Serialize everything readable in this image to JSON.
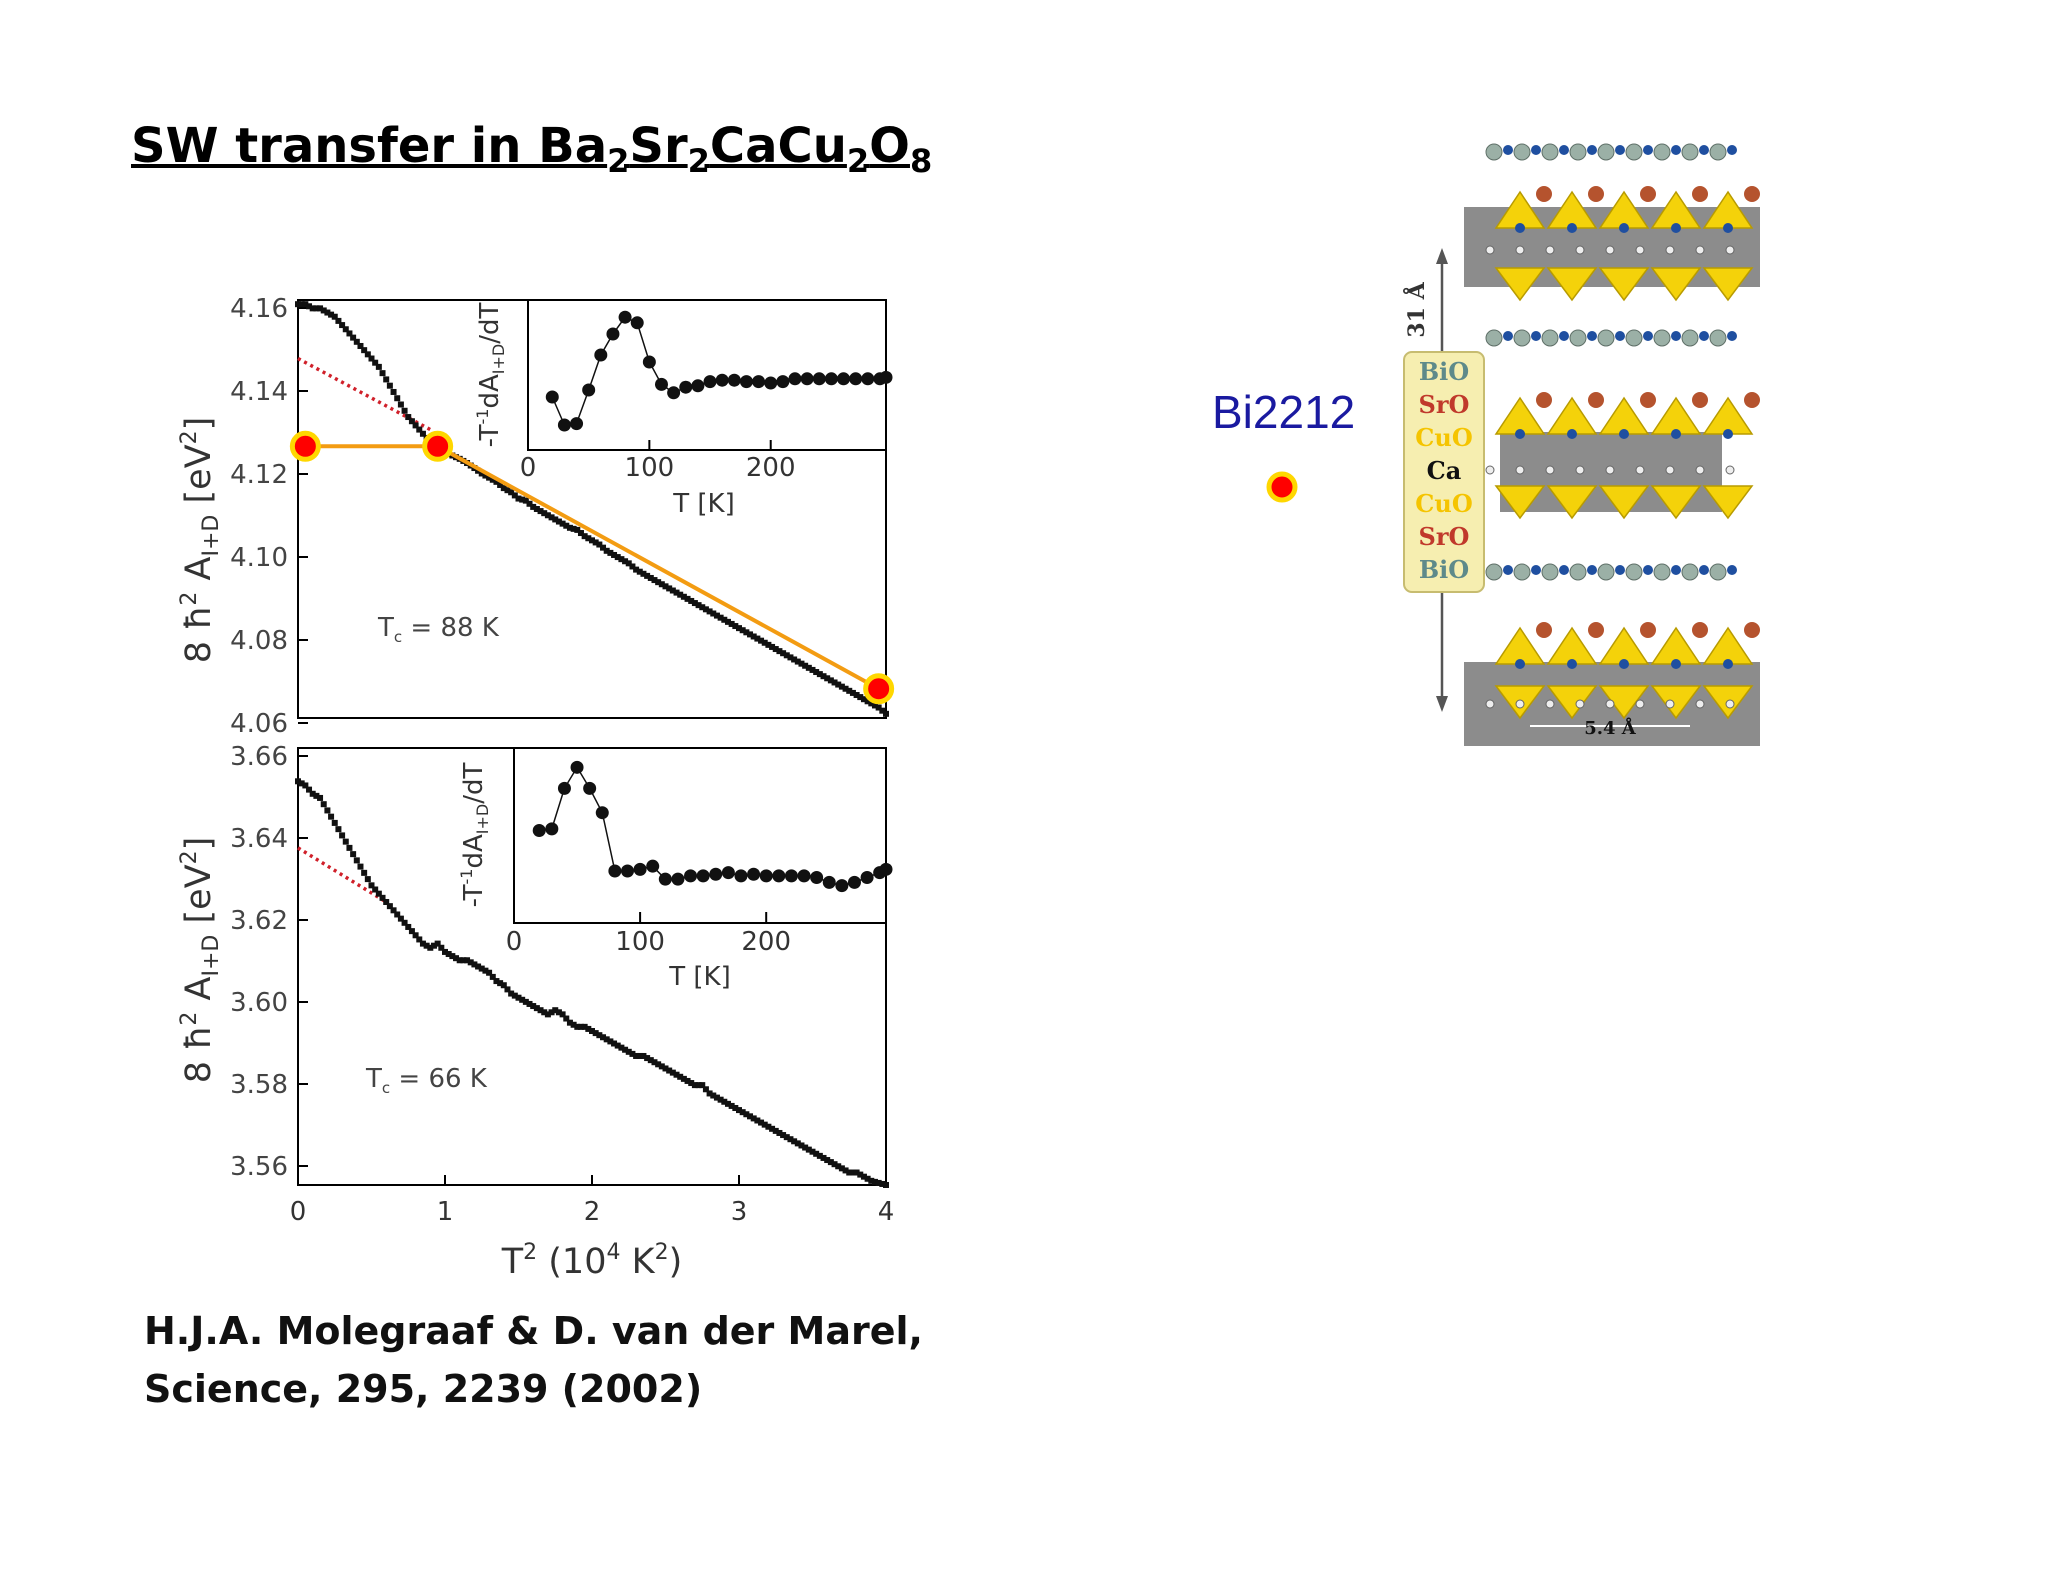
{
  "slide": {
    "title_parts": [
      "SW transfer in Ba",
      "2",
      "Sr",
      "2",
      "CaCu",
      "2",
      "O",
      "8"
    ],
    "citation_line1": "H.J.A. Molegraaf & D. van der Marel,",
    "citation_line2": "Science, 295, 2239 (2002)"
  },
  "chart_data": [
    {
      "type": "scatter",
      "panel": "top",
      "ylabel": "8 ħ² A_I+D [eV²]",
      "xlim": [
        0,
        4
      ],
      "ylim": [
        4.06,
        4.16
      ],
      "yticks": [
        "4.16",
        "4.14",
        "4.12",
        "4.10",
        "4.08",
        "4.06"
      ],
      "annotation": "T_c = 88 K",
      "series": [
        {
          "x": [
            0.0,
            0.05,
            0.1,
            0.15,
            0.2,
            0.25,
            0.3,
            0.35,
            0.4,
            0.45,
            0.5,
            0.55,
            0.6,
            0.65,
            0.7,
            0.75,
            0.8,
            0.85,
            0.9,
            0.95,
            1.0,
            1.05,
            1.1,
            1.15,
            1.2,
            1.25,
            1.3,
            1.35,
            1.4,
            1.45,
            1.5,
            1.55,
            1.6,
            1.65,
            1.7,
            1.75,
            1.8,
            1.85,
            1.9,
            1.95,
            2.0,
            2.05,
            2.1,
            2.15,
            2.2,
            2.25,
            2.3,
            2.35,
            2.4,
            2.45,
            2.5,
            2.55,
            2.6,
            2.65,
            2.7,
            2.75,
            2.8,
            2.85,
            2.9,
            2.95,
            3.0,
            3.05,
            3.1,
            3.15,
            3.2,
            3.25,
            3.3,
            3.35,
            3.4,
            3.45,
            3.5,
            3.55,
            3.6,
            3.65,
            3.7,
            3.75,
            3.8,
            3.85,
            3.9,
            3.95,
            4.0
          ],
          "y": [
            4.159,
            4.159,
            4.158,
            4.158,
            4.157,
            4.156,
            4.154,
            4.152,
            4.15,
            4.148,
            4.146,
            4.144,
            4.141,
            4.138,
            4.135,
            4.132,
            4.13,
            4.128,
            4.126,
            4.1245,
            4.1235,
            4.1228,
            4.122,
            4.121,
            4.1198,
            4.1185,
            4.1175,
            4.1165,
            4.115,
            4.114,
            4.1125,
            4.112,
            4.1105,
            4.1095,
            4.1085,
            4.1075,
            4.1065,
            4.1055,
            4.105,
            4.1035,
            4.1025,
            4.1015,
            4.1,
            4.099,
            4.098,
            4.097,
            4.0955,
            4.0945,
            4.0935,
            4.0925,
            4.0915,
            4.0905,
            4.0895,
            4.0885,
            4.0875,
            4.0865,
            4.0855,
            4.0845,
            4.0835,
            4.0825,
            4.0815,
            4.0805,
            4.0795,
            4.0785,
            4.0775,
            4.0765,
            4.0755,
            4.0745,
            4.0735,
            4.0725,
            4.0715,
            4.0705,
            4.0695,
            4.0685,
            4.0675,
            4.0665,
            4.0655,
            4.0645,
            4.0635,
            4.0625,
            4.061
          ]
        }
      ],
      "dotted_extrapolation": {
        "x": [
          0,
          0.9
        ],
        "y": [
          4.146,
          4.129
        ]
      },
      "highlight_path": {
        "x": [
          0.05,
          0.95,
          3.95
        ],
        "y": [
          4.125,
          4.125,
          4.067
        ]
      },
      "inset": {
        "ylabel": "-T⁻¹dA_I+D/dT",
        "xlabel": "T [K]",
        "xticks": [
          "0",
          "100",
          "200"
        ],
        "xlim": [
          0,
          295
        ],
        "ylim": [
          0,
          10
        ],
        "x": [
          20,
          30,
          40,
          50,
          60,
          70,
          80,
          90,
          100,
          110,
          120,
          130,
          140,
          150,
          160,
          170,
          180,
          190,
          200,
          210,
          220,
          230,
          240,
          250,
          260,
          270,
          280,
          290,
          295
        ],
        "y": [
          3.5,
          1.5,
          1.6,
          4.0,
          6.5,
          8.0,
          9.2,
          8.8,
          6.0,
          4.4,
          3.8,
          4.2,
          4.3,
          4.6,
          4.7,
          4.7,
          4.6,
          4.6,
          4.5,
          4.6,
          4.8,
          4.8,
          4.8,
          4.8,
          4.8,
          4.8,
          4.8,
          4.8,
          4.9
        ]
      }
    },
    {
      "type": "scatter",
      "panel": "bottom",
      "ylabel": "8 ħ² A_I+D [eV²]",
      "xlabel": "T² (10⁴ K²)",
      "xticks": [
        "0",
        "1",
        "2",
        "3",
        "4"
      ],
      "xlim": [
        0,
        4
      ],
      "ylim": [
        3.555,
        3.66
      ],
      "yticks": [
        "3.66",
        "3.64",
        "3.62",
        "3.60",
        "3.58",
        "3.56"
      ],
      "annotation": "T_c = 66 K",
      "series": [
        {
          "x": [
            0.0,
            0.05,
            0.1,
            0.15,
            0.2,
            0.25,
            0.3,
            0.35,
            0.4,
            0.45,
            0.5,
            0.55,
            0.6,
            0.65,
            0.7,
            0.75,
            0.8,
            0.85,
            0.9,
            0.95,
            1.0,
            1.05,
            1.1,
            1.15,
            1.2,
            1.25,
            1.3,
            1.35,
            1.4,
            1.45,
            1.5,
            1.55,
            1.6,
            1.65,
            1.7,
            1.75,
            1.8,
            1.85,
            1.9,
            1.95,
            2.0,
            2.05,
            2.1,
            2.15,
            2.2,
            2.25,
            2.3,
            2.35,
            2.4,
            2.45,
            2.5,
            2.55,
            2.6,
            2.65,
            2.7,
            2.75,
            2.8,
            2.85,
            2.9,
            2.95,
            3.0,
            3.05,
            3.1,
            3.15,
            3.2,
            3.25,
            3.3,
            3.35,
            3.4,
            3.45,
            3.5,
            3.55,
            3.6,
            3.65,
            3.7,
            3.75,
            3.8,
            3.85,
            3.9,
            3.95,
            4.0
          ],
          "y": [
            3.652,
            3.651,
            3.649,
            3.648,
            3.645,
            3.642,
            3.639,
            3.636,
            3.633,
            3.63,
            3.627,
            3.625,
            3.623,
            3.621,
            3.619,
            3.617,
            3.615,
            3.613,
            3.612,
            3.613,
            3.611,
            3.61,
            3.609,
            3.609,
            3.608,
            3.607,
            3.606,
            3.604,
            3.603,
            3.601,
            3.6,
            3.599,
            3.598,
            3.597,
            3.596,
            3.597,
            3.596,
            3.594,
            3.593,
            3.593,
            3.592,
            3.591,
            3.59,
            3.589,
            3.588,
            3.587,
            3.586,
            3.586,
            3.585,
            3.584,
            3.583,
            3.582,
            3.581,
            3.58,
            3.579,
            3.579,
            3.577,
            3.576,
            3.575,
            3.574,
            3.573,
            3.572,
            3.571,
            3.57,
            3.569,
            3.568,
            3.567,
            3.566,
            3.565,
            3.564,
            3.563,
            3.562,
            3.561,
            3.56,
            3.559,
            3.558,
            3.558,
            3.557,
            3.556,
            3.5555,
            3.555
          ]
        }
      ],
      "dotted_extrapolation": {
        "x": [
          0,
          0.6
        ],
        "y": [
          3.636,
          3.623
        ]
      },
      "inset": {
        "ylabel": "-T⁻¹dA_I+D/dT",
        "xlabel": "T [K]",
        "xticks": [
          "0",
          "100",
          "200"
        ],
        "xlim": [
          0,
          295
        ],
        "ylim": [
          0,
          10
        ],
        "x": [
          20,
          30,
          40,
          50,
          60,
          70,
          80,
          90,
          100,
          110,
          120,
          130,
          140,
          150,
          160,
          170,
          180,
          190,
          200,
          210,
          220,
          230,
          240,
          250,
          260,
          270,
          280,
          290,
          295
        ],
        "y": [
          5.4,
          5.5,
          8.0,
          9.3,
          8.0,
          6.5,
          2.9,
          2.9,
          3.0,
          3.2,
          2.4,
          2.4,
          2.6,
          2.6,
          2.7,
          2.8,
          2.6,
          2.7,
          2.6,
          2.6,
          2.6,
          2.6,
          2.5,
          2.2,
          2.0,
          2.2,
          2.5,
          2.8,
          3.0
        ]
      }
    }
  ],
  "legend_marker": {
    "label": "Bi2212",
    "color": "#ff0000",
    "ring": "#ffd700",
    "label_color": "#1a1aa0"
  },
  "crystal": {
    "layers": [
      "BiO",
      "SrO",
      "CuO",
      "Ca",
      "CuO",
      "SrO",
      "BiO"
    ],
    "layer_colors": [
      "#5e8a8a",
      "#c0392b",
      "#f5c400",
      "#111111",
      "#f5c400",
      "#c0392b",
      "#5e8a8a"
    ],
    "c_axis": "31 Å",
    "a_axis": "5.4 Å"
  }
}
